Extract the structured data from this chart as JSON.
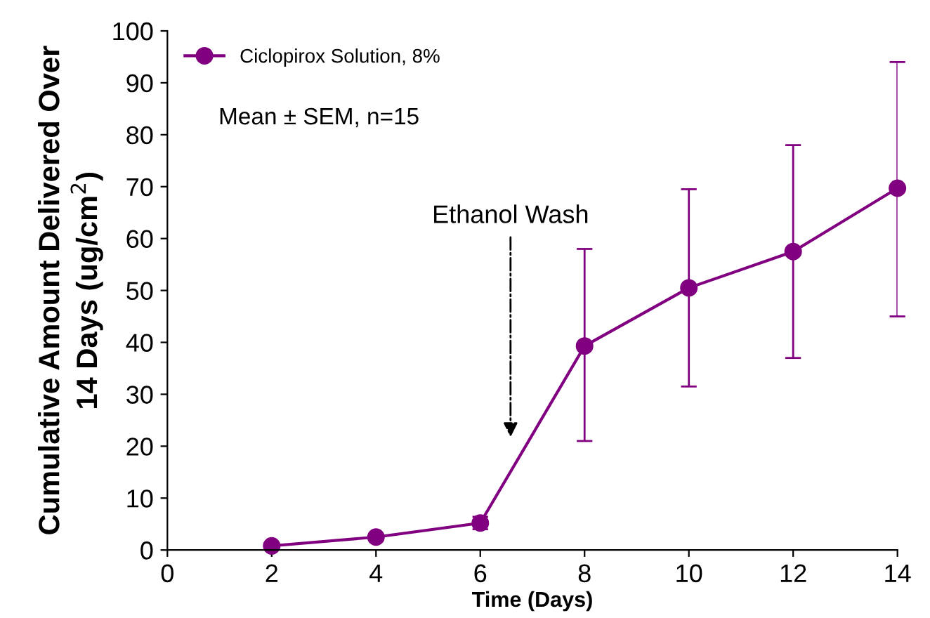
{
  "chart_data": {
    "type": "line",
    "xlabel": "Time (Days)",
    "ylabel": "Cumulative Amount Delivered Over\n14 Days (ug/cm$^{2}$)",
    "x": [
      2,
      4,
      6,
      8,
      10,
      12,
      14
    ],
    "series": [
      {
        "name": "Ciclopirox Solution, 8%",
        "color": "#800080",
        "values": [
          0.8,
          2.5,
          5.2,
          39.3,
          50.5,
          57.5,
          69.7
        ],
        "errors": [
          null,
          null,
          1.2,
          [
            21,
            58
          ],
          [
            31.5,
            69.5
          ],
          [
            37,
            78
          ],
          [
            45,
            94
          ]
        ]
      }
    ],
    "xlim": [
      0,
      14
    ],
    "xticks": [
      0,
      2,
      4,
      6,
      8,
      10,
      12,
      14
    ],
    "ylim": [
      0,
      100
    ],
    "yticks": [
      0,
      10,
      20,
      30,
      40,
      50,
      60,
      70,
      80,
      90,
      100
    ],
    "grid": false,
    "legend": "top left",
    "marker": "circle",
    "line_style": "solid",
    "annotations": [
      "Mean ± SEM, n=15",
      "Ethanol Wash"
    ]
  }
}
